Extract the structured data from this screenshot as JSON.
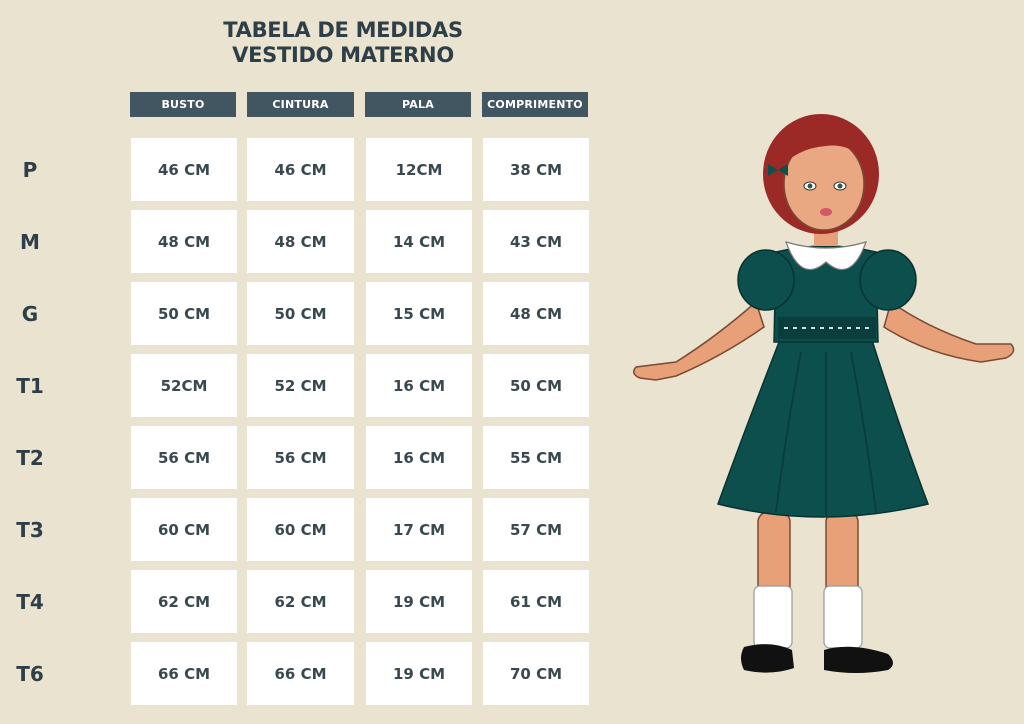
{
  "title": {
    "line1": "TABELA DE MEDIDAS",
    "line2": "VESTIDO MATERNO"
  },
  "columns": [
    "BUSTO",
    "CINTURA",
    "PALA",
    "COMPRIMENTO"
  ],
  "rows": [
    {
      "label": "P",
      "values": [
        "46 CM",
        "46 CM",
        "12CM",
        "38 CM"
      ]
    },
    {
      "label": "M",
      "values": [
        "48 CM",
        "48 CM",
        "14 CM",
        "43 CM"
      ]
    },
    {
      "label": "G",
      "values": [
        "50 CM",
        "50 CM",
        "15 CM",
        "48 CM"
      ]
    },
    {
      "label": "T1",
      "values": [
        "52CM",
        "52 CM",
        "16 CM",
        "50 CM"
      ]
    },
    {
      "label": "T2",
      "values": [
        "56 CM",
        "56 CM",
        "16 CM",
        "55 CM"
      ]
    },
    {
      "label": "T3",
      "values": [
        "60 CM",
        "60 CM",
        "17 CM",
        "57 CM"
      ]
    },
    {
      "label": "T4",
      "values": [
        "62 CM",
        "62 CM",
        "19 CM",
        "61 CM"
      ]
    },
    {
      "label": "T6",
      "values": [
        "66 CM",
        "66 CM",
        "19 CM",
        "70 CM"
      ]
    }
  ],
  "colors": {
    "background": "#e9e3cf",
    "header": "#415661",
    "text": "#2f3f48",
    "dress": "#0d4f4d",
    "hair": "#9b2a26"
  },
  "illustration": "girl-in-green-dress"
}
